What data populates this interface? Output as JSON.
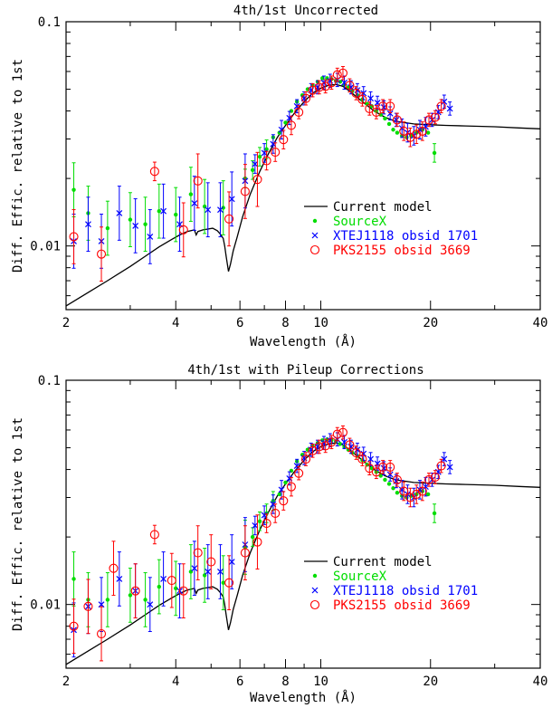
{
  "charts": [
    {
      "title": "4th/1st Uncorrected",
      "xlabel": "Wavelength (Å)",
      "ylabel": "Diff. Effic. relative to 1st"
    },
    {
      "title": "4th/1st with Pileup Corrections",
      "xlabel": "Wavelength (Å)",
      "ylabel": "Diff. Effic. relative to 1st"
    }
  ],
  "legend": [
    {
      "label": "Current model",
      "color": "#000000",
      "marker": "line"
    },
    {
      "label": "SourceX",
      "color": "#00dd00",
      "marker": "dot"
    },
    {
      "label": "XTEJ1118 obsid 1701",
      "color": "#0000ff",
      "marker": "cross"
    },
    {
      "label": "PKS2155 obsid 3669",
      "color": "#ff0000",
      "marker": "circle"
    }
  ],
  "axes": {
    "x": {
      "scale": "log",
      "range": [
        2,
        40
      ],
      "major_ticks": [
        2,
        4,
        6,
        8,
        10,
        20,
        40
      ],
      "minor_ticks": [
        3,
        5,
        7,
        9,
        30
      ]
    },
    "y": {
      "scale": "log",
      "range": [
        0.0052,
        0.1
      ],
      "labeled_ticks": [
        0.01,
        0.1
      ],
      "minor_ticks": [
        0.006,
        0.007,
        0.008,
        0.009,
        0.02,
        0.03,
        0.04,
        0.05,
        0.06,
        0.07,
        0.08,
        0.09
      ]
    }
  },
  "chart_data": [
    {
      "type": "scatter",
      "title": "4th/1st Uncorrected",
      "xlabel": "Wavelength (Å)",
      "ylabel": "Diff. Effic. relative to 1st",
      "xscale": "log",
      "yscale": "log",
      "xlim": [
        2,
        40
      ],
      "ylim": [
        0.0052,
        0.1
      ],
      "series": [
        {
          "name": "Current model",
          "type": "line",
          "x": [
            2.0,
            2.3,
            2.6,
            3.0,
            3.3,
            3.6,
            3.9,
            4.1,
            4.3,
            4.5,
            4.55,
            4.6,
            4.75,
            4.9,
            5.05,
            5.2,
            5.3,
            5.4,
            5.45,
            5.5,
            5.58,
            5.65,
            5.75,
            5.9,
            6.1,
            6.4,
            6.8,
            7.2,
            7.6,
            8.0,
            8.5,
            9.0,
            9.5,
            10.0,
            10.5,
            11.0,
            11.5,
            12.0,
            13.0,
            14.0,
            15.0,
            16.0,
            18.0,
            20.0,
            22.0,
            25.0,
            30.0,
            35.0,
            40.0
          ],
          "y": [
            0.0054,
            0.0062,
            0.007,
            0.0081,
            0.009,
            0.0099,
            0.0107,
            0.0112,
            0.0116,
            0.0118,
            0.0112,
            0.0116,
            0.0118,
            0.0119,
            0.012,
            0.0117,
            0.0113,
            0.0108,
            0.01,
            0.009,
            0.0077,
            0.0083,
            0.0095,
            0.011,
            0.0135,
            0.017,
            0.0215,
            0.026,
            0.0305,
            0.0345,
            0.0395,
            0.044,
            0.048,
            0.0505,
            0.052,
            0.0525,
            0.0515,
            0.049,
            0.044,
            0.04,
            0.0375,
            0.036,
            0.035,
            0.0347,
            0.0345,
            0.0343,
            0.034,
            0.0336,
            0.0333
          ]
        },
        {
          "name": "SourceX",
          "type": "scatter",
          "x": [
            2.1,
            2.3,
            2.6,
            3.0,
            3.3,
            3.6,
            4.0,
            4.4,
            4.8,
            5.4,
            6.2,
            6.5,
            6.8,
            7.1,
            7.4,
            7.7,
            8.0,
            8.3,
            8.6,
            8.9,
            9.2,
            9.5,
            9.8,
            10.1,
            10.4,
            10.7,
            11.0,
            11.3,
            11.6,
            11.9,
            12.2,
            12.6,
            13.0,
            13.4,
            13.8,
            14.2,
            14.6,
            15.0,
            15.4,
            15.8,
            16.2,
            16.7,
            17.2,
            17.7,
            18.3,
            19.0,
            19.7,
            20.5
          ],
          "y": [
            0.0178,
            0.014,
            0.012,
            0.0131,
            0.0125,
            0.0143,
            0.0138,
            0.017,
            0.015,
            0.0148,
            0.02,
            0.0218,
            0.025,
            0.027,
            0.0305,
            0.032,
            0.0355,
            0.04,
            0.044,
            0.047,
            0.05,
            0.052,
            0.054,
            0.056,
            0.056,
            0.0555,
            0.0545,
            0.054,
            0.0525,
            0.051,
            0.049,
            0.047,
            0.045,
            0.043,
            0.042,
            0.04,
            0.0385,
            0.037,
            0.035,
            0.033,
            0.032,
            0.031,
            0.0305,
            0.031,
            0.032,
            0.033,
            0.032,
            0.026
          ]
        },
        {
          "name": "XTEJ1118 obsid 1701",
          "type": "scatter",
          "x": [
            2.1,
            2.3,
            2.5,
            2.8,
            3.1,
            3.4,
            3.7,
            4.1,
            4.5,
            4.9,
            5.3,
            5.7,
            6.2,
            6.6,
            7.0,
            7.4,
            7.8,
            8.2,
            8.6,
            9.0,
            9.4,
            9.8,
            10.2,
            10.6,
            11.1,
            11.6,
            12.1,
            12.6,
            13.1,
            13.7,
            14.3,
            14.9,
            15.5,
            16.1,
            16.7,
            17.3,
            18.0,
            18.7,
            19.4,
            20.2,
            21.0,
            21.8,
            22.6
          ],
          "y": [
            0.0105,
            0.0125,
            0.0105,
            0.014,
            0.0123,
            0.011,
            0.0143,
            0.0125,
            0.0155,
            0.0145,
            0.0145,
            0.0162,
            0.0195,
            0.0232,
            0.026,
            0.0285,
            0.033,
            0.0372,
            0.042,
            0.0455,
            0.0495,
            0.051,
            0.0535,
            0.0545,
            0.055,
            0.0535,
            0.051,
            0.0495,
            0.048,
            0.0455,
            0.0435,
            0.0415,
            0.039,
            0.0365,
            0.0335,
            0.032,
            0.031,
            0.033,
            0.034,
            0.0365,
            0.0395,
            0.044,
            0.041
          ]
        },
        {
          "name": "PKS2155 obsid 3669",
          "type": "scatter",
          "x": [
            2.1,
            2.5,
            3.5,
            4.2,
            4.6,
            5.6,
            6.2,
            6.7,
            7.1,
            7.5,
            7.9,
            8.3,
            8.7,
            9.1,
            9.5,
            9.9,
            10.3,
            10.7,
            11.1,
            11.5,
            12.0,
            12.5,
            13.0,
            13.6,
            14.2,
            14.8,
            15.5,
            16.2,
            16.9,
            17.6,
            18.3,
            19.0,
            19.8,
            20.6,
            21.4
          ],
          "y": [
            0.011,
            0.0092,
            0.0215,
            0.0118,
            0.0195,
            0.0132,
            0.0175,
            0.0198,
            0.024,
            0.0262,
            0.0298,
            0.0345,
            0.0395,
            0.0455,
            0.0495,
            0.051,
            0.0515,
            0.0535,
            0.058,
            0.059,
            0.052,
            0.048,
            0.045,
            0.041,
            0.0395,
            0.042,
            0.042,
            0.0365,
            0.0325,
            0.0305,
            0.0315,
            0.0325,
            0.0365,
            0.0375,
            0.042
          ]
        }
      ]
    },
    {
      "type": "scatter",
      "title": "4th/1st with Pileup Corrections",
      "xlabel": "Wavelength (Å)",
      "ylabel": "Diff. Effic. relative to 1st",
      "xscale": "log",
      "yscale": "log",
      "xlim": [
        2,
        40
      ],
      "ylim": [
        0.0052,
        0.1
      ],
      "series": [
        {
          "name": "Current model",
          "type": "line",
          "x": [
            2.0,
            2.3,
            2.6,
            3.0,
            3.3,
            3.6,
            3.9,
            4.1,
            4.3,
            4.5,
            4.55,
            4.6,
            4.75,
            4.9,
            5.05,
            5.2,
            5.3,
            5.4,
            5.45,
            5.5,
            5.58,
            5.65,
            5.75,
            5.9,
            6.1,
            6.4,
            6.8,
            7.2,
            7.6,
            8.0,
            8.5,
            9.0,
            9.5,
            10.0,
            10.5,
            11.0,
            11.5,
            12.0,
            13.0,
            14.0,
            15.0,
            16.0,
            18.0,
            20.0,
            22.0,
            25.0,
            30.0,
            35.0,
            40.0
          ],
          "y": [
            0.0054,
            0.0062,
            0.007,
            0.0081,
            0.009,
            0.0099,
            0.0107,
            0.0112,
            0.0116,
            0.0118,
            0.0112,
            0.0116,
            0.0118,
            0.0119,
            0.012,
            0.0117,
            0.0113,
            0.0108,
            0.01,
            0.009,
            0.0077,
            0.0083,
            0.0095,
            0.011,
            0.0135,
            0.017,
            0.0215,
            0.026,
            0.0305,
            0.0345,
            0.0395,
            0.044,
            0.048,
            0.0505,
            0.052,
            0.0525,
            0.0515,
            0.049,
            0.044,
            0.04,
            0.0375,
            0.036,
            0.035,
            0.0347,
            0.0345,
            0.0343,
            0.034,
            0.0336,
            0.0333
          ]
        },
        {
          "name": "SourceX",
          "type": "scatter",
          "x": [
            2.1,
            2.3,
            2.6,
            3.0,
            3.3,
            3.6,
            4.0,
            4.4,
            4.8,
            5.4,
            6.2,
            6.5,
            6.8,
            7.1,
            7.4,
            7.7,
            8.0,
            8.3,
            8.6,
            8.9,
            9.2,
            9.5,
            9.8,
            10.1,
            10.4,
            10.7,
            11.0,
            11.3,
            11.6,
            11.9,
            12.2,
            12.6,
            13.0,
            13.4,
            13.8,
            14.2,
            14.6,
            15.0,
            15.4,
            15.8,
            16.2,
            16.7,
            17.2,
            17.7,
            18.3,
            19.0,
            19.7,
            20.5
          ],
          "y": [
            0.013,
            0.0105,
            0.0105,
            0.011,
            0.0105,
            0.012,
            0.0118,
            0.014,
            0.0135,
            0.0125,
            0.018,
            0.02,
            0.0235,
            0.0255,
            0.029,
            0.031,
            0.035,
            0.0395,
            0.0435,
            0.0465,
            0.049,
            0.051,
            0.0525,
            0.054,
            0.0545,
            0.054,
            0.0535,
            0.052,
            0.0505,
            0.049,
            0.0475,
            0.046,
            0.044,
            0.042,
            0.0405,
            0.039,
            0.0375,
            0.036,
            0.0345,
            0.033,
            0.0315,
            0.0305,
            0.03,
            0.0305,
            0.031,
            0.032,
            0.031,
            0.0255
          ]
        },
        {
          "name": "XTEJ1118 obsid 1701",
          "type": "scatter",
          "x": [
            2.1,
            2.3,
            2.5,
            2.8,
            3.1,
            3.4,
            3.7,
            4.1,
            4.5,
            4.9,
            5.3,
            5.7,
            6.2,
            6.6,
            7.0,
            7.4,
            7.8,
            8.2,
            8.6,
            9.0,
            9.4,
            9.8,
            10.2,
            10.6,
            11.1,
            11.6,
            12.1,
            12.6,
            13.1,
            13.7,
            14.3,
            14.9,
            15.5,
            16.1,
            16.7,
            17.3,
            18.0,
            18.7,
            19.4,
            20.2,
            21.0,
            21.8,
            22.6
          ],
          "y": [
            0.0077,
            0.0098,
            0.01,
            0.013,
            0.0115,
            0.01,
            0.013,
            0.0115,
            0.0145,
            0.014,
            0.014,
            0.0155,
            0.0185,
            0.0225,
            0.025,
            0.028,
            0.0325,
            0.0365,
            0.0415,
            0.045,
            0.049,
            0.0505,
            0.0525,
            0.054,
            0.0545,
            0.053,
            0.0505,
            0.049,
            0.047,
            0.0445,
            0.0425,
            0.0405,
            0.038,
            0.0355,
            0.0325,
            0.031,
            0.03,
            0.0325,
            0.0335,
            0.036,
            0.039,
            0.0445,
            0.041
          ]
        },
        {
          "name": "PKS2155 obsid 3669",
          "type": "scatter",
          "x": [
            2.1,
            2.3,
            2.5,
            2.7,
            3.1,
            3.5,
            3.9,
            4.2,
            4.6,
            5.0,
            5.6,
            6.2,
            6.7,
            7.1,
            7.5,
            7.9,
            8.3,
            8.7,
            9.1,
            9.5,
            9.9,
            10.3,
            10.7,
            11.1,
            11.5,
            12.0,
            12.5,
            13.0,
            13.6,
            14.2,
            14.8,
            15.5,
            16.2,
            16.9,
            17.6,
            18.3,
            19.0,
            19.8,
            20.6,
            21.4
          ],
          "y": [
            0.008,
            0.0098,
            0.0074,
            0.0145,
            0.0115,
            0.0205,
            0.0128,
            0.0115,
            0.017,
            0.0155,
            0.0125,
            0.017,
            0.019,
            0.023,
            0.0255,
            0.029,
            0.0335,
            0.0385,
            0.0445,
            0.0485,
            0.0505,
            0.051,
            0.053,
            0.0575,
            0.0585,
            0.0515,
            0.0475,
            0.0445,
            0.0405,
            0.039,
            0.041,
            0.041,
            0.036,
            0.032,
            0.03,
            0.031,
            0.032,
            0.036,
            0.037,
            0.0415
          ]
        }
      ]
    }
  ]
}
